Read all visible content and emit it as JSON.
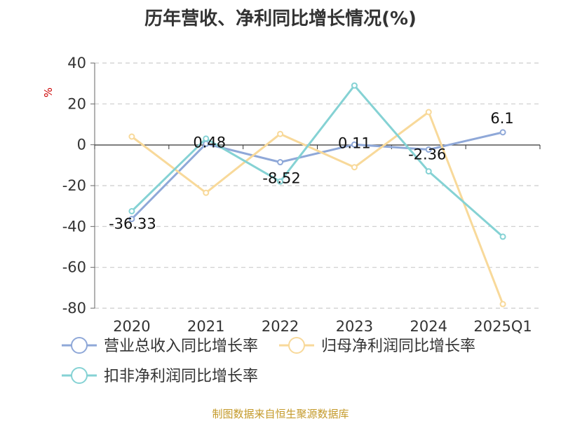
{
  "chart_data": {
    "type": "line",
    "title": "历年营收、净利同比增长情况(%)",
    "ylabel": "%",
    "categories": [
      "2020",
      "2021",
      "2022",
      "2023",
      "2024",
      "2025Q1"
    ],
    "ylim": [
      -80,
      40
    ],
    "yticks": [
      40,
      20,
      0,
      -20,
      -40,
      -60,
      -80
    ],
    "grid": true,
    "legend_position": "bottom-left",
    "series": [
      {
        "name": "营业总收入同比增长率",
        "color": "#8fa8d8",
        "values": [
          -36.33,
          0.48,
          -8.52,
          0.11,
          -2.36,
          6.1
        ],
        "labels": [
          "-36.33",
          "0.48",
          "-8.52",
          "0.11",
          "-2.36",
          "6.1"
        ]
      },
      {
        "name": "归母净利润同比增长率",
        "color": "#f8d99a",
        "values": [
          4,
          -23.5,
          5.3,
          -11,
          16,
          -78
        ],
        "labels": []
      },
      {
        "name": "扣非净利润同比增长率",
        "color": "#85d2d4",
        "values": [
          -32.5,
          3,
          -18,
          29,
          -13,
          -45
        ],
        "labels": []
      }
    ]
  },
  "footer": {
    "source": "制图数据来自恒生聚源数据库"
  }
}
